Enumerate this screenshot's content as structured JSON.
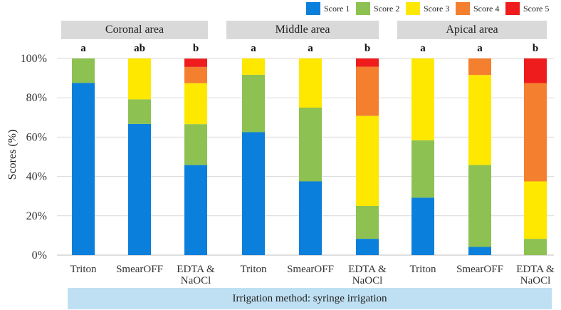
{
  "chart_data": {
    "type": "stacked-bar",
    "ylabel": "Scores (%)",
    "ylim": [
      0,
      100
    ],
    "yticks": [
      "0%",
      "20%",
      "40%",
      "60%",
      "80%",
      "100%"
    ],
    "legend": [
      {
        "name": "Score 1",
        "color": "#0b7fdc"
      },
      {
        "name": "Score 2",
        "color": "#8dc152"
      },
      {
        "name": "Score 3",
        "color": "#ffe800"
      },
      {
        "name": "Score 4",
        "color": "#f47f2f"
      },
      {
        "name": "Score 5",
        "color": "#ee1c1c"
      }
    ],
    "groups": [
      {
        "name": "Coronal area",
        "bars": [
          {
            "label": [
              "Triton"
            ],
            "sig": "a",
            "values": [
              87.5,
              12.5,
              0,
              0,
              0
            ]
          },
          {
            "label": [
              "SmearOFF"
            ],
            "sig": "ab",
            "values": [
              66.7,
              12.5,
              20.8,
              0,
              0
            ]
          },
          {
            "label": [
              "EDTA &",
              "NaOCl"
            ],
            "sig": "b",
            "values": [
              45.8,
              20.8,
              20.8,
              8.3,
              4.2
            ]
          }
        ]
      },
      {
        "name": "Middle area",
        "bars": [
          {
            "label": [
              "Triton"
            ],
            "sig": "a",
            "values": [
              62.5,
              29.2,
              8.3,
              0,
              0
            ]
          },
          {
            "label": [
              "SmearOFF"
            ],
            "sig": "a",
            "values": [
              37.5,
              37.5,
              25.0,
              0,
              0
            ]
          },
          {
            "label": [
              "EDTA &",
              "NaOCl"
            ],
            "sig": "b",
            "values": [
              8.3,
              16.7,
              45.8,
              25.0,
              4.2
            ]
          }
        ]
      },
      {
        "name": "Apical area",
        "bars": [
          {
            "label": [
              "Triton"
            ],
            "sig": "a",
            "values": [
              29.2,
              29.2,
              41.6,
              0,
              0
            ]
          },
          {
            "label": [
              "SmearOFF"
            ],
            "sig": "a",
            "values": [
              4.2,
              41.6,
              45.8,
              8.4,
              0
            ]
          },
          {
            "label": [
              "EDTA &",
              "NaOCl"
            ],
            "sig": "b",
            "values": [
              0,
              8.3,
              29.2,
              50.0,
              12.5
            ]
          }
        ]
      }
    ],
    "footer": "Irrigation method: syringe irrigation"
  }
}
